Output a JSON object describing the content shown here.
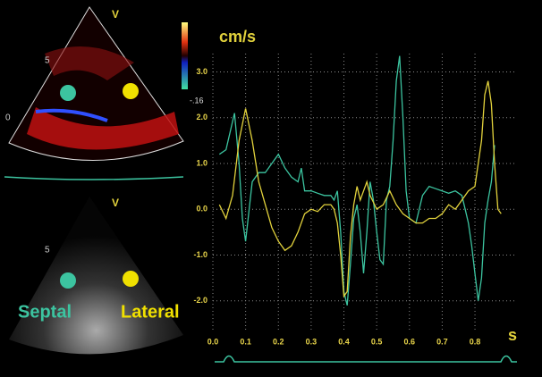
{
  "chart_data": {
    "type": "line",
    "y_label": "cm/s",
    "x_label": "s",
    "xlim": [
      0,
      0.92
    ],
    "ylim": [
      -2.65,
      3.4
    ],
    "xticks": [
      {
        "value": 0,
        "label": "0.0"
      },
      0.1,
      0.2,
      0.3,
      0.4,
      0.5,
      0.6,
      0.7,
      0.8
    ],
    "yticks": [
      {
        "value": 3,
        "label": "3.0"
      },
      {
        "value": 2,
        "label": "2.0"
      },
      {
        "value": 1,
        "label": "1.0"
      },
      {
        "value": 0,
        "label": "0.0"
      },
      {
        "value": -1,
        "label": "-1.0"
      },
      {
        "value": -2,
        "label": "-2.0"
      }
    ],
    "grid": true,
    "series": [
      {
        "name": "Septal",
        "color": "#3cc4a0",
        "x": [
          0.02,
          0.04,
          0.066,
          0.08,
          0.09,
          0.1,
          0.12,
          0.14,
          0.16,
          0.18,
          0.2,
          0.22,
          0.24,
          0.26,
          0.27,
          0.28,
          0.3,
          0.32,
          0.34,
          0.36,
          0.37,
          0.38,
          0.39,
          0.4,
          0.41,
          0.42,
          0.43,
          0.44,
          0.45,
          0.46,
          0.47,
          0.48,
          0.49,
          0.5,
          0.51,
          0.52,
          0.53,
          0.54,
          0.55,
          0.56,
          0.57,
          0.58,
          0.59,
          0.6,
          0.62,
          0.64,
          0.66,
          0.68,
          0.7,
          0.72,
          0.74,
          0.76,
          0.77,
          0.78,
          0.79,
          0.8,
          0.81,
          0.82,
          0.83,
          0.84,
          0.85,
          0.86
        ],
        "values": [
          1.2,
          1.3,
          2.1,
          1.0,
          -0.2,
          -0.7,
          0.6,
          0.8,
          0.8,
          1.0,
          1.2,
          0.9,
          0.7,
          0.6,
          0.9,
          0.4,
          0.4,
          0.35,
          0.3,
          0.3,
          0.2,
          0.4,
          -0.5,
          -1.8,
          -2.1,
          -1.2,
          -0.2,
          0.1,
          -0.5,
          -1.4,
          -0.5,
          0.6,
          0.2,
          -0.5,
          -1.1,
          -1.2,
          0.2,
          0.5,
          1.5,
          2.8,
          3.35,
          2.0,
          0.4,
          -0.2,
          -0.3,
          0.3,
          0.5,
          0.45,
          0.4,
          0.35,
          0.4,
          0.3,
          0,
          -0.3,
          -0.8,
          -1.4,
          -2.0,
          -1.5,
          -0.3,
          0.2,
          0.6,
          1.4
        ]
      },
      {
        "name": "Lateral",
        "color": "#e2d23c",
        "x": [
          0.02,
          0.04,
          0.06,
          0.08,
          0.1,
          0.12,
          0.14,
          0.16,
          0.18,
          0.2,
          0.22,
          0.24,
          0.26,
          0.28,
          0.3,
          0.32,
          0.34,
          0.36,
          0.37,
          0.38,
          0.39,
          0.4,
          0.41,
          0.42,
          0.43,
          0.44,
          0.45,
          0.46,
          0.47,
          0.48,
          0.5,
          0.52,
          0.54,
          0.56,
          0.58,
          0.6,
          0.62,
          0.64,
          0.66,
          0.68,
          0.7,
          0.72,
          0.74,
          0.76,
          0.78,
          0.8,
          0.82,
          0.83,
          0.84,
          0.85,
          0.86,
          0.87,
          0.88
        ],
        "values": [
          0.1,
          -0.2,
          0.3,
          1.5,
          2.2,
          1.5,
          0.6,
          0.1,
          -0.4,
          -0.7,
          -0.9,
          -0.8,
          -0.5,
          -0.1,
          0.0,
          -0.05,
          0.1,
          0.1,
          0.0,
          -0.3,
          -1.0,
          -1.9,
          -1.8,
          -0.6,
          0.1,
          0.5,
          0.2,
          0.4,
          0.6,
          0.3,
          0.0,
          0.1,
          0.4,
          0.1,
          -0.1,
          -0.2,
          -0.3,
          -0.3,
          -0.2,
          -0.2,
          -0.1,
          0.1,
          0.0,
          0.2,
          0.4,
          0.5,
          1.5,
          2.5,
          2.8,
          2.3,
          1.0,
          0.0,
          -0.1
        ]
      }
    ]
  },
  "image": {
    "view_marker_top": "V",
    "view_marker_bottom": "V",
    "depth_top": "5",
    "depth_bottom": "5",
    "depth_top_2": "0",
    "color_scale": "-.16"
  }
}
